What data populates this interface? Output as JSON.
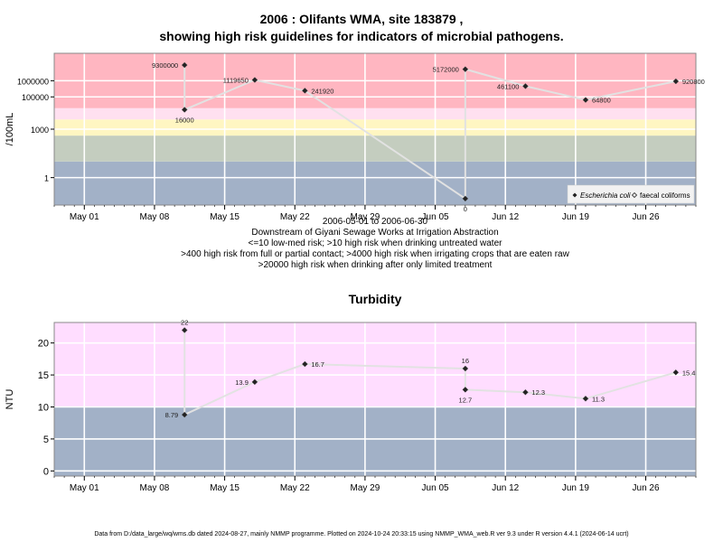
{
  "title_line1": "2006 : Olifants WMA, site 183879 ,",
  "title_line2": "showing high risk guidelines for indicators of microbial pathogens.",
  "subtitle_lines": [
    "2006-05-01 to 2006-06-30",
    "Downstream of Giyani Sewage Works at Irrigation Abstraction",
    "<=10 low-med risk; >10 high risk when drinking untreated water",
    ">400 high risk from full or partial contact; >4000 high risk when irrigating crops that are eaten raw",
    ">20000 high risk when drinking after only limited treatment"
  ],
  "footer": "Data from D:/data_large/wq/wms.db dated 2024-08-27, mainly NMMP programme. Plotted on 2024-10-24 20:33:15 using NMMP_WMA_web.R ver 9.3 under R version 4.4.1 (2024-06-14 ucrt)",
  "colors": {
    "band_high": "#FFB6C1",
    "band_pink_light": "#FFE0F0",
    "band_yellow": "#FFF6C2",
    "band_green": "#C4CDBF",
    "band_blue": "#A2B1C7",
    "turb_pink": "#FFDDFF",
    "line": "#E2E2E2",
    "point": "#222222",
    "frame": "#888888",
    "grid": "#FFFFFF"
  },
  "chart_data": [
    {
      "type": "line",
      "ylabel": "/100mL",
      "yscale": "log10",
      "ylim": [
        0.02,
        50000000
      ],
      "yticks": [
        1,
        1000,
        100000,
        1000000
      ],
      "ytick_labels": [
        "1",
        "1000",
        "100000",
        "1000000"
      ],
      "xticks": [
        "2006-05-01",
        "2006-05-08",
        "2006-05-15",
        "2006-05-22",
        "2006-05-29",
        "2006-06-05",
        "2006-06-12",
        "2006-06-19",
        "2006-06-26"
      ],
      "xtick_labels": [
        "May 01",
        "May 08",
        "May 15",
        "May 22",
        "May 29",
        "Jun 05",
        "Jun 12",
        "Jun 19",
        "Jun 26"
      ],
      "xlim": [
        "2006-04-28",
        "2006-07-01"
      ],
      "bands": [
        {
          "from": 0.02,
          "to": 10,
          "color": "#A2B1C7"
        },
        {
          "from": 10,
          "to": 400,
          "color": "#C4CDBF"
        },
        {
          "from": 400,
          "to": 4000,
          "color": "#FFF6C2"
        },
        {
          "from": 4000,
          "to": 20000,
          "color": "#FFE0F0"
        },
        {
          "from": 20000,
          "to": 50000000,
          "color": "#FFB6C1"
        }
      ],
      "legend": {
        "placement": "bottom-right",
        "entries": [
          "Escherichia coli",
          "faecal coliforms"
        ]
      },
      "series": [
        {
          "name": "Escherichia coli",
          "points": [
            {
              "x": "2006-05-11",
              "y": 9300000,
              "label": "9300000",
              "label_pos": "left"
            },
            {
              "x": "2006-05-11",
              "y": 16000,
              "label": "16000",
              "label_pos": "below"
            },
            {
              "x": "2006-05-18",
              "y": 1119650,
              "label": "1119650",
              "label_pos": "left"
            },
            {
              "x": "2006-05-23",
              "y": 241920,
              "label": "241920",
              "label_pos": "right"
            },
            {
              "x": "2006-06-08",
              "y": 0.05,
              "label": "0",
              "label_pos": "below"
            },
            {
              "x": "2006-06-08",
              "y": 5172000,
              "label": "5172000",
              "label_pos": "left"
            },
            {
              "x": "2006-06-14",
              "y": 461100,
              "label": "461100",
              "label_pos": "left"
            },
            {
              "x": "2006-06-20",
              "y": 64800,
              "label": "64800",
              "label_pos": "right"
            },
            {
              "x": "2006-06-29",
              "y": 920800,
              "label": "920800",
              "label_pos": "right"
            }
          ]
        }
      ]
    },
    {
      "type": "line",
      "title": "Turbidity",
      "ylabel": "NTU",
      "ylim": [
        -0.8,
        23.2
      ],
      "yticks": [
        0,
        5,
        10,
        15,
        20
      ],
      "ytick_labels": [
        "0",
        "5",
        "10",
        "15",
        "20"
      ],
      "xticks": [
        "2006-05-01",
        "2006-05-08",
        "2006-05-15",
        "2006-05-22",
        "2006-05-29",
        "2006-06-05",
        "2006-06-12",
        "2006-06-19",
        "2006-06-26"
      ],
      "xtick_labels": [
        "May 01",
        "May 08",
        "May 15",
        "May 22",
        "May 29",
        "Jun 05",
        "Jun 12",
        "Jun 19",
        "Jun 26"
      ],
      "xlim": [
        "2006-04-28",
        "2006-07-01"
      ],
      "bands": [
        {
          "from": -0.8,
          "to": 10,
          "color": "#A2B1C7"
        },
        {
          "from": 10,
          "to": 23.2,
          "color": "#FFDDFF"
        }
      ],
      "series": [
        {
          "points": [
            {
              "x": "2006-05-11",
              "y": 22,
              "label": "22",
              "label_pos": "above"
            },
            {
              "x": "2006-05-11",
              "y": 8.79,
              "label": "8.79",
              "label_pos": "left"
            },
            {
              "x": "2006-05-18",
              "y": 13.9,
              "label": "13.9",
              "label_pos": "left"
            },
            {
              "x": "2006-05-23",
              "y": 16.7,
              "label": "16.7",
              "label_pos": "right"
            },
            {
              "x": "2006-06-08",
              "y": 16,
              "label": "16",
              "label_pos": "above"
            },
            {
              "x": "2006-06-08",
              "y": 12.7,
              "label": "12.7",
              "label_pos": "below"
            },
            {
              "x": "2006-06-14",
              "y": 12.3,
              "label": "12.3",
              "label_pos": "right"
            },
            {
              "x": "2006-06-20",
              "y": 11.3,
              "label": "11.3",
              "label_pos": "right"
            },
            {
              "x": "2006-06-29",
              "y": 15.4,
              "label": "15.4",
              "label_pos": "right"
            }
          ]
        }
      ]
    }
  ]
}
